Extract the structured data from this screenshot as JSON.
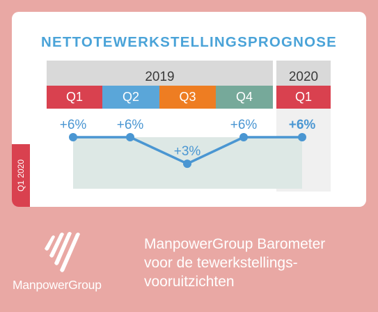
{
  "colors": {
    "background": "#e9a8a4",
    "title": "#4aa3d8",
    "line": "#4a96d2",
    "area": "#dde8e5",
    "q1": "#d9414f",
    "q2": "#5aa6d9",
    "q3": "#ee7d22",
    "q4": "#76a99a",
    "header": "#d9d9d9"
  },
  "card": {
    "title": "NETTOTEWERKSTELLINGSPROGNOSE",
    "side_label": "Q1 2020"
  },
  "chart_data": {
    "type": "line",
    "periods": [
      {
        "year": "2019",
        "quarters": [
          "Q1",
          "Q2",
          "Q3",
          "Q4"
        ]
      },
      {
        "year": "2020",
        "quarters": [
          "Q1"
        ]
      }
    ],
    "categories": [
      "Q1 2019",
      "Q2 2019",
      "Q3 2019",
      "Q4 2019",
      "Q1 2020"
    ],
    "values": [
      6,
      6,
      3,
      6,
      6
    ],
    "labels": [
      "+6%",
      "+6%",
      "+3%",
      "+6%",
      "+6%"
    ],
    "unit": "%",
    "highlight_last": true
  },
  "footer": {
    "brand": "ManpowerGroup",
    "tagline_lines": [
      "ManpowerGroup Barometer",
      "voor de tewerkstellings-",
      "vooruitzichten"
    ]
  }
}
